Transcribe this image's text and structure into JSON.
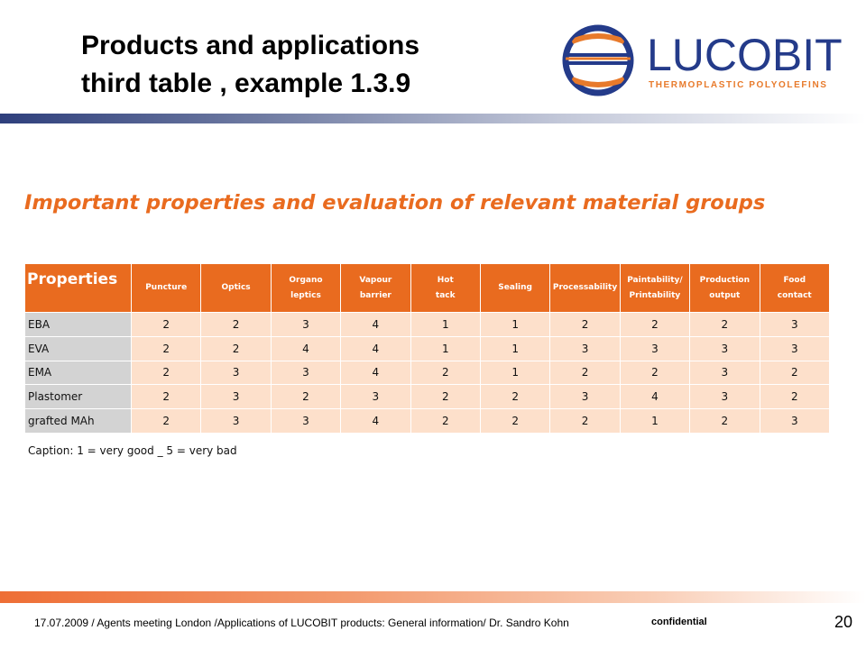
{
  "title_line1": "Products and applications",
  "title_line2": "third table , example 1.3.9",
  "logo": {
    "name": "LUCOBIT",
    "tagline": "THERMOPLASTIC POLYOLEFINS",
    "color_blue": "#243b8a",
    "color_orange": "#e87a2b"
  },
  "subtitle": "Important properties and evaluation of relevant material groups",
  "table": {
    "corner": "Properties",
    "headers": [
      [
        "Puncture"
      ],
      [
        "Optics"
      ],
      [
        "Organo",
        "leptics"
      ],
      [
        "Vapour",
        "barrier"
      ],
      [
        "Hot",
        "tack"
      ],
      [
        "Sealing"
      ],
      [
        "Processability"
      ],
      [
        "Paintability/",
        "Printability"
      ],
      [
        "Production",
        "output"
      ],
      [
        "Food",
        "contact"
      ]
    ],
    "rows": [
      {
        "label": "EBA",
        "values": [
          "2",
          "2",
          "3",
          "4",
          "1",
          "1",
          "2",
          "2",
          "2",
          "3"
        ]
      },
      {
        "label": "EVA",
        "values": [
          "2",
          "2",
          "4",
          "4",
          "1",
          "1",
          "3",
          "3",
          "3",
          "3"
        ]
      },
      {
        "label": "EMA",
        "values": [
          "2",
          "3",
          "3",
          "4",
          "2",
          "1",
          "2",
          "2",
          "3",
          "2"
        ]
      },
      {
        "label": "Plastomer",
        "values": [
          "2",
          "3",
          "2",
          "3",
          "2",
          "2",
          "3",
          "4",
          "3",
          "2"
        ]
      },
      {
        "label": "grafted MAh",
        "values": [
          "2",
          "3",
          "3",
          "4",
          "2",
          "2",
          "2",
          "1",
          "2",
          "3"
        ]
      }
    ]
  },
  "caption": "Caption: 1 = very good _ 5 = very bad",
  "footer": {
    "text": "17.07.2009 / Agents meeting London /Applications of LUCOBIT products: General information/ Dr. Sandro Kohn",
    "confidential": "confidential",
    "page": "20"
  },
  "colors": {
    "accent_orange": "#e96b1f",
    "cell_peach": "#fde0cb",
    "rowhead_gray": "#d3d3d3",
    "navy": "#2e3f7c"
  }
}
